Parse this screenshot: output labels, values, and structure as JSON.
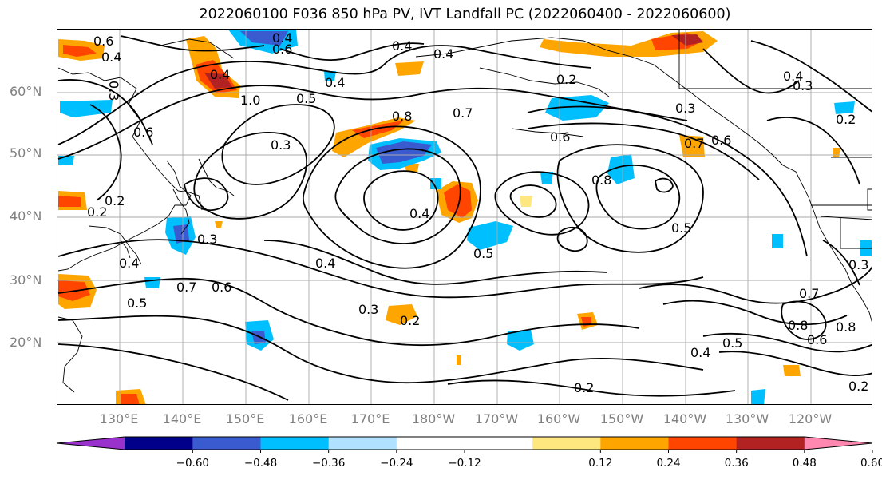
{
  "title": "2022060100 F036 850 hPa PV, IVT Landfall PC (2022060400 - 2022060600)",
  "lat_labels": [
    "60°N",
    "50°N",
    "40°N",
    "30°N",
    "20°N"
  ],
  "lon_labels": [
    "130°E",
    "140°E",
    "150°E",
    "160°E",
    "170°E",
    "180°W",
    "170°W",
    "160°W",
    "150°W",
    "140°W",
    "130°W",
    "120°W"
  ],
  "contour_labels": [
    "0.6",
    "0.4",
    "0.3",
    "1.0",
    "0.6",
    "0.4",
    "0.4",
    "0.6",
    "0.5",
    "0.4",
    "0.2",
    "0.4",
    "0.8",
    "0.7",
    "0.3",
    "0.2",
    "0.6",
    "0.4",
    "0.7",
    "0.6",
    "0.3",
    "0.2",
    "0.8",
    "0.5",
    "0.4",
    "0.3",
    "0.4",
    "0.2",
    "0.4",
    "0.5",
    "0.3",
    "0.7",
    "0.6",
    "0.4",
    "0.5",
    "0.8",
    "0.3",
    "0.2",
    "0.7",
    "0.8",
    "0.5",
    "0.4",
    "0.6",
    "0.3",
    "0.2",
    "0.2"
  ],
  "colorbar": {
    "colors": [
      "#9932cc",
      "#00008b",
      "#3a5bcf",
      "#00bfff",
      "#b0e2ff",
      "#ffffff",
      "#ffffff",
      "#ffe780",
      "#ffa500",
      "#ff4500",
      "#b22222",
      "#ff88b0"
    ],
    "tick_labels": [
      "−0.60",
      "−0.48",
      "−0.36",
      "−0.24",
      "−0.12",
      "0.12",
      "0.24",
      "0.36",
      "0.48",
      "0.60"
    ]
  }
}
